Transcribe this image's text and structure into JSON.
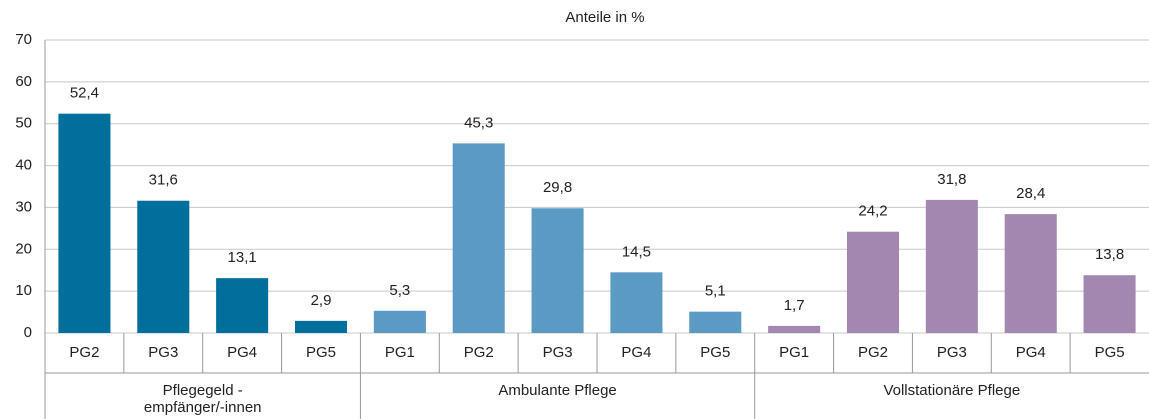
{
  "chart_data": {
    "type": "bar",
    "title": "Anteile in %",
    "ylim": [
      0,
      70
    ],
    "yticks": [
      0,
      10,
      20,
      30,
      40,
      50,
      60,
      70
    ],
    "grid": true,
    "groups": [
      {
        "name": "Pflegegeld -\nempfänger/-innen",
        "color": "#006f9b",
        "categories": [
          "PG2",
          "PG3",
          "PG4",
          "PG5"
        ],
        "values": [
          52.4,
          31.6,
          13.1,
          2.9
        ],
        "value_labels": [
          "52,4",
          "31,6",
          "13,1",
          "2,9"
        ]
      },
      {
        "name": "Ambulante Pflege",
        "color": "#5a9ac3",
        "categories": [
          "PG1",
          "PG2",
          "PG3",
          "PG4",
          "PG5"
        ],
        "values": [
          5.3,
          45.3,
          29.8,
          14.5,
          5.1
        ],
        "value_labels": [
          "5,3",
          "45,3",
          "29,8",
          "14,5",
          "5,1"
        ]
      },
      {
        "name": "Vollstationäre Pflege",
        "color": "#a387b1",
        "categories": [
          "PG1",
          "PG2",
          "PG3",
          "PG4",
          "PG5"
        ],
        "values": [
          1.7,
          24.2,
          31.8,
          28.4,
          13.8
        ],
        "value_labels": [
          "1,7",
          "24,2",
          "31,8",
          "28,4",
          "13,8"
        ]
      }
    ]
  }
}
